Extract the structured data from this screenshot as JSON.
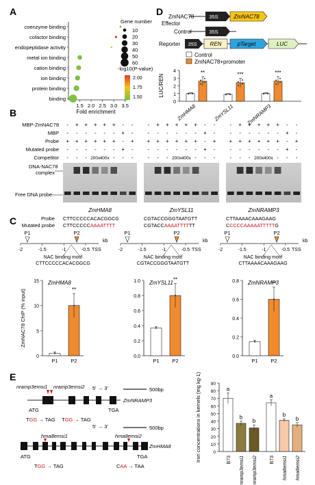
{
  "panel_labels": [
    "A",
    "B",
    "C",
    "D",
    "E"
  ],
  "panelA": {
    "categories": [
      "coenzyme binding",
      "cofactor binding",
      "endopeptidase activity",
      "metal ion binding",
      "cation binding",
      "ion binding",
      "protein binding",
      "binding"
    ],
    "xlabel": "Fold enrichment",
    "xticks": [
      "1.5",
      "2.0",
      "2.5",
      "3.0",
      "3.5"
    ],
    "legend_size_title": "Gene number",
    "legend_sizes": [
      "10",
      "20",
      "30",
      "40",
      "50",
      "60"
    ],
    "legend_color_title": "-log10(P-value)",
    "legend_color_ticks": [
      "2.00",
      "1.75",
      "1.50"
    ],
    "colors": {
      "high": "#e03a2f",
      "mid": "#f3c21b",
      "low": "#7cc242"
    }
  },
  "chart_data": [
    {
      "type": "scatter",
      "xlabel": "Fold enrichment",
      "categories": [
        "coenzyme binding",
        "cofactor binding",
        "endopeptidase activity",
        "metal ion binding",
        "cation binding",
        "ion binding",
        "protein binding",
        "binding"
      ],
      "x": [
        3.3,
        3.1,
        2.9,
        1.5,
        1.45,
        1.4,
        1.35,
        1.2
      ],
      "gene_number": [
        4,
        5,
        3,
        20,
        22,
        24,
        30,
        60
      ],
      "neglog10_p": [
        1.6,
        2.0,
        1.7,
        1.5,
        1.5,
        1.5,
        1.5,
        1.5
      ],
      "xlim": [
        1.0,
        3.6
      ]
    },
    {
      "type": "bar",
      "title": "ZmHMA8",
      "ylabel": "ZmNAC78 ChIP (% input)",
      "categories": [
        "P1",
        "P2"
      ],
      "values": [
        0.5,
        10.0
      ],
      "ylim": [
        0,
        15
      ],
      "yticks": [
        "0",
        "5",
        "10",
        "15"
      ]
    },
    {
      "type": "bar",
      "title": "ZmYSL11",
      "categories": [
        "P1",
        "P2"
      ],
      "values": [
        0.37,
        0.8
      ],
      "ylim": [
        0,
        1.0
      ],
      "yticks": [
        "0.0",
        "0.2",
        "0.4",
        "0.6",
        "0.8",
        "1.0"
      ]
    },
    {
      "type": "bar",
      "title": "ZmNRAMP3",
      "categories": [
        "P1",
        "P2"
      ],
      "values": [
        0.15,
        0.6
      ],
      "ylim": [
        0,
        0.8
      ],
      "yticks": [
        "0.0",
        "0.2",
        "0.4",
        "0.6",
        "0.8"
      ]
    },
    {
      "type": "bar",
      "ylabel": "LUC/REN",
      "categories": [
        "ZmHMA8",
        "ZmYSL11",
        "ZmNRAMP3"
      ],
      "series": [
        {
          "name": "Control",
          "values": [
            1.0,
            0.9,
            1.0
          ]
        },
        {
          "name": "ZmNAC78+promoter",
          "values": [
            2.6,
            2.4,
            2.6
          ]
        }
      ],
      "significance": [
        "**",
        "***",
        "***"
      ],
      "ylim": [
        0,
        4
      ],
      "yticks": [
        "0",
        "1",
        "2",
        "3",
        "4"
      ]
    },
    {
      "type": "bar",
      "ylabel": "Iron concentrations in kernels (mg kg-1)",
      "categories": [
        "B73",
        "nramp3emsi1",
        "nramp3emsi2",
        "B73",
        "hma8emsi1",
        "hma8emsi2"
      ],
      "values": [
        70,
        37,
        31,
        64,
        41,
        35
      ],
      "letters": [
        "a",
        "b",
        "b",
        "a",
        "b",
        "b"
      ],
      "ylim": [
        0,
        90
      ],
      "yticks": [
        "0",
        "10",
        "20",
        "30",
        "40",
        "50",
        "60",
        "70",
        "80",
        "90"
      ]
    }
  ],
  "panelB": {
    "row_labels": [
      "MBP-ZmNAC78",
      "MBP",
      "Probe",
      "Mutated probe",
      "Competitor"
    ],
    "competitor_values": [
      "200x",
      "400x"
    ],
    "complex_label": "DNA-NAC78 complex",
    "free_label": "Free DNA probe",
    "genes": [
      "ZmHMA8",
      "ZmYSL11",
      "ZmNRAMP3"
    ],
    "seq_row_labels": [
      "Probe",
      "Mutated probe"
    ],
    "seqs": [
      {
        "probe": "CTTCCCCCACACGGCG",
        "mut_black": "CTTCCCCC",
        "mut_red": "AAAATTTT"
      },
      {
        "probe": "CGTACCGGGTAATGTT",
        "mut_black": "CGTACC",
        "mut_red": "AAAATTTT",
        "mut_tail": "TT"
      },
      {
        "probe": "CTTAAAACAAAGAAG",
        "mut_pre": "C",
        "mut_red": "CCCCAAAAATTTTT",
        "mut_tail": "G"
      }
    ]
  },
  "panelC": {
    "axis_ticks": [
      "-2",
      "-1.5",
      "-1",
      "-0.5",
      "kb"
    ],
    "markers": [
      "P1",
      "P2"
    ],
    "tss": "TSS",
    "motif_label": "NAC binding motif",
    "motifs": [
      "CTTCCCCCACACGGCG",
      "CGTACCGGGTAATGTT",
      "CTTAAAACAAAGAAG"
    ],
    "significance": "**"
  },
  "panelD": {
    "effector": "Effector",
    "reporter": "Reporter",
    "gene": "ZmNAC78",
    "control": "Control",
    "p35s": "35S",
    "ren": "REN",
    "ptarget": "pTarget",
    "luc": "LUC",
    "legend": [
      "Control",
      "ZmNAC78+promoter"
    ],
    "colors": {
      "control": "#ffffff",
      "treat": "#f08a2e"
    }
  },
  "panelE": {
    "scale": "500bp",
    "direction": "5' → 3'",
    "nramp": {
      "gene": "ZmNRAMP3",
      "m1": "nramp3emsi1",
      "m2": "nramp3emsi2",
      "atg": "ATG",
      "tga": "TGA",
      "mut1_from": "TGG",
      "mut1_to": "TAG",
      "mut2_from": "TGG",
      "mut2_to": "TAG"
    },
    "hma": {
      "gene": "ZmHMA8",
      "m1": "hma8emsi1",
      "m2": "hma8emsi2",
      "atg": "ATG",
      "tga": "TGA",
      "mut1_from": "TGG",
      "mut1_to": "TAG",
      "mut2_from": "CAA",
      "mut2_to": "TAA"
    },
    "bar_colors": [
      "#ffffff",
      "#8c7b3c",
      "#6a5a25",
      "#ffffff",
      "#f6c9a8",
      "#e3b07e"
    ]
  }
}
